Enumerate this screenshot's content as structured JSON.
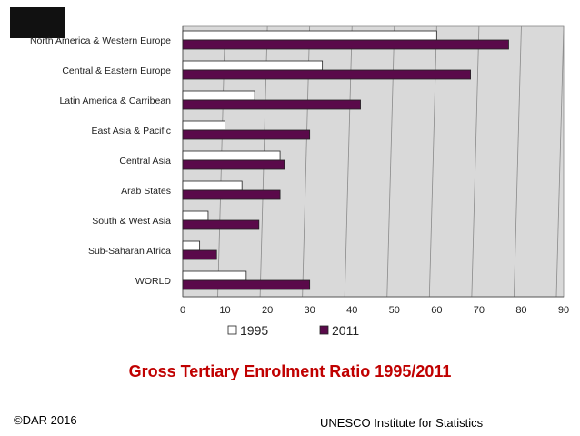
{
  "chart_data": {
    "type": "bar",
    "orientation": "horizontal",
    "title": "Gross Tertiary Enrolment Ratio 1995/2011",
    "categories": [
      "North America & Western Europe",
      "Central & Eastern Europe",
      "Latin America & Carribean",
      "East Asia & Pacific",
      "Central Asia",
      "Arab States",
      "South & West Asia",
      "Sub-Saharan Africa",
      "WORLD"
    ],
    "series": [
      {
        "name": "1995",
        "color": "#ffffff",
        "values": [
          60,
          33,
          17,
          10,
          23,
          14,
          6,
          4,
          15
        ]
      },
      {
        "name": "2011",
        "color": "#5a0a4a",
        "values": [
          77,
          68,
          42,
          30,
          24,
          23,
          18,
          8,
          30
        ]
      }
    ],
    "xlim": [
      0,
      90
    ],
    "xticks": [
      "0",
      "10",
      "20",
      "30",
      "40",
      "50",
      "60",
      "70",
      "80",
      "90"
    ],
    "grid": true,
    "legend_position": "bottom"
  },
  "footer": {
    "copyright": "©DAR 2016",
    "source": "UNESCO Institute for Statistics"
  },
  "colors": {
    "plot_background": "#d9d9d9",
    "title": "#c00000",
    "logo": "#111111"
  },
  "icons": {
    "logo": "logo-icon"
  }
}
